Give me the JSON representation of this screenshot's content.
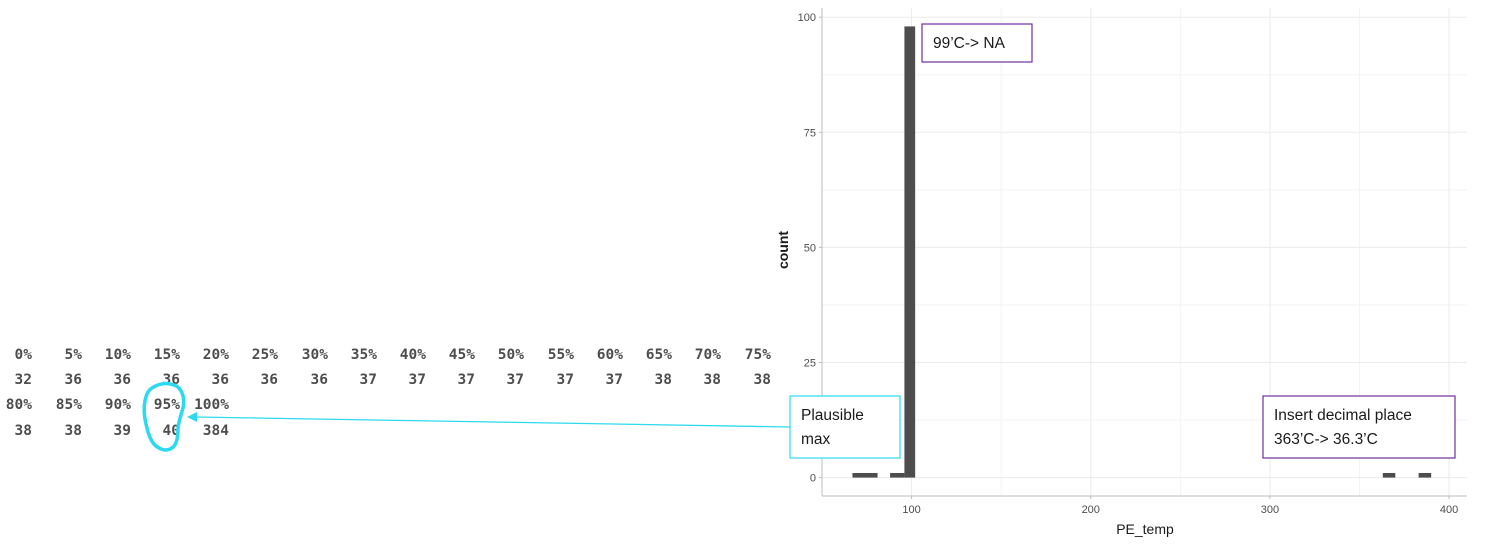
{
  "quantiles": {
    "row1": {
      "labels": [
        "0%",
        "5%",
        "10%",
        "15%",
        "20%",
        "25%",
        "30%",
        "35%",
        "40%",
        "45%",
        "50%",
        "55%",
        "60%",
        "65%",
        "70%",
        "75%"
      ],
      "values": [
        "32",
        "36",
        "36",
        "36",
        "36",
        "36",
        "36",
        "37",
        "37",
        "37",
        "37",
        "37",
        "37",
        "38",
        "38",
        "38"
      ]
    },
    "row2": {
      "labels": [
        "80%",
        "85%",
        "90%",
        "95%",
        "100%"
      ],
      "values": [
        "38",
        "38",
        "39",
        "40",
        "384"
      ]
    },
    "highlight_color": "#2dd9ef"
  },
  "chart_data": {
    "type": "bar",
    "xlabel": "PE_temp",
    "ylabel": "count",
    "xlim": [
      50,
      410
    ],
    "ylim": [
      -4,
      102
    ],
    "x_ticks": [
      100,
      200,
      300,
      400
    ],
    "y_ticks": [
      0,
      25,
      50,
      75,
      100
    ],
    "bins": [
      {
        "x0": 67,
        "x1": 81,
        "count": 1
      },
      {
        "x0": 88,
        "x1": 96,
        "count": 1
      },
      {
        "x0": 96,
        "x1": 102,
        "count": 98
      },
      {
        "x0": 363,
        "x1": 370,
        "count": 1
      },
      {
        "x0": 383,
        "x1": 390,
        "count": 1
      }
    ],
    "bar_color": "#4d4d4d",
    "grid": true,
    "annotations": {
      "na_note": "99’C-> NA",
      "decimal_note": [
        "Insert decimal place",
        "363’C-> 36.3’C"
      ],
      "plausible_max": [
        "Plausible",
        "max"
      ]
    },
    "annotation_border_purple": "#7030a0",
    "annotation_border_cyan": "#2dd9ef",
    "arrow_color": "#2dd9ef"
  }
}
